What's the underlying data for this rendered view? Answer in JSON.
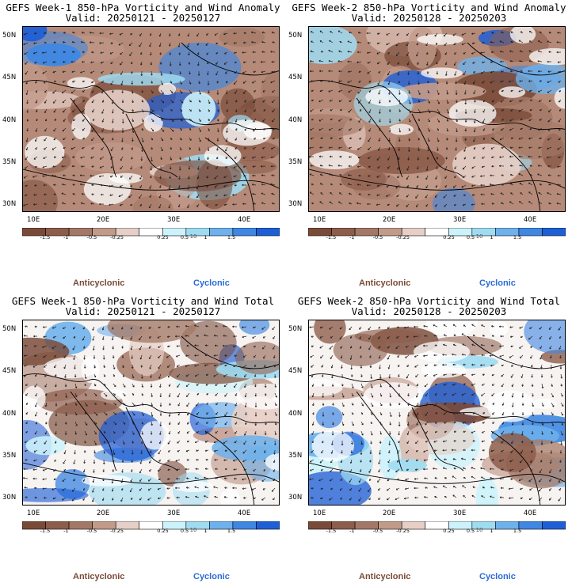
{
  "panels": [
    {
      "title": "GEFS Week-1 850-hPa Vorticity and Wind Anomaly",
      "valid": "Valid: 20250121 - 20250127",
      "variant": "anomaly",
      "week": 1
    },
    {
      "title": "GEFS Week-2 850-hPa Vorticity and Wind Anomaly",
      "valid": "Valid: 20250128 - 20250203",
      "variant": "anomaly",
      "week": 2
    },
    {
      "title": "GEFS Week-1 850-hPa Vorticity and Wind Total",
      "valid": "Valid: 20250121 - 20250127",
      "variant": "total",
      "week": 1
    },
    {
      "title": "GEFS Week-2 850-hPa Vorticity and Wind Total",
      "valid": "Valid: 20250128 - 20250203",
      "variant": "total",
      "week": 2
    }
  ],
  "axes": {
    "y_ticks": [
      "50N",
      "45N",
      "40N",
      "35N",
      "30N"
    ],
    "x_ticks": [
      "10E",
      "20E",
      "30E",
      "40E"
    ]
  },
  "colorbar": {
    "labels": [
      "-1.5",
      "-1",
      "-0.5",
      "-0.25",
      "0.25",
      "0.5",
      "1",
      "1.5"
    ],
    "unit": "10",
    "colors": [
      "#7a4a38",
      "#8d5d4b",
      "#a47866",
      "#c29a8a",
      "#e6cfc6",
      "#ffffff",
      "#ccf2fb",
      "#9fdcf2",
      "#6eb1ec",
      "#3f87e2",
      "#1f5fd6"
    ]
  },
  "legend": {
    "anticyclonic": "Anticyclonic",
    "cyclonic": "Cyclonic"
  }
}
